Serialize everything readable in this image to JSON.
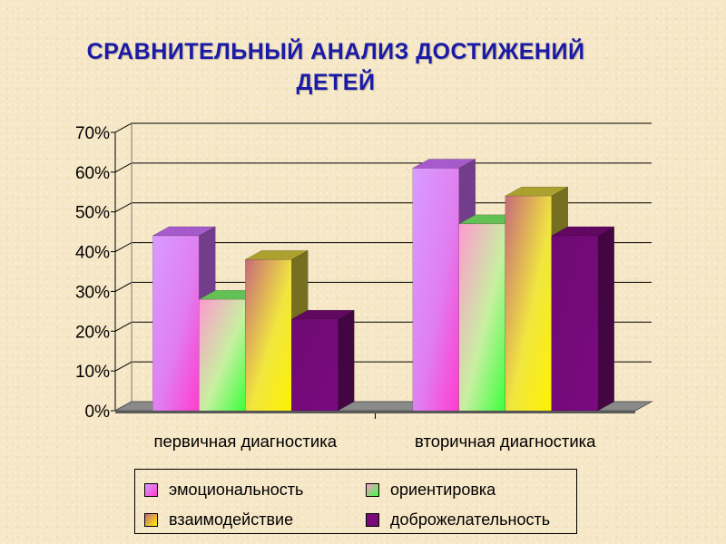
{
  "title_lines": [
    "СРАВНИТЕЛЬНЫЙ АНАЛИЗ ДОСТИЖЕНИЙ",
    "ДЕТЕЙ"
  ],
  "chart_data": {
    "type": "bar",
    "categories": [
      "первичная диагностика",
      "вторичная диагностика"
    ],
    "series": [
      {
        "name": "эмоциональность",
        "values": [
          44,
          61
        ],
        "color": "#d070ff"
      },
      {
        "name": "ориентировка",
        "values": [
          28,
          47
        ],
        "color": "#7cf06a"
      },
      {
        "name": "взаимодействие",
        "values": [
          38,
          54
        ],
        "color": "#d7c93a"
      },
      {
        "name": "доброжелательность",
        "values": [
          23,
          44
        ],
        "color": "#7a0a7a"
      }
    ],
    "ylim": [
      0,
      70
    ],
    "yticks": [
      "0%",
      "10%",
      "20%",
      "30%",
      "40%",
      "50%",
      "60%",
      "70%"
    ],
    "grid": true,
    "three_d": true,
    "legend_position": "bottom"
  }
}
